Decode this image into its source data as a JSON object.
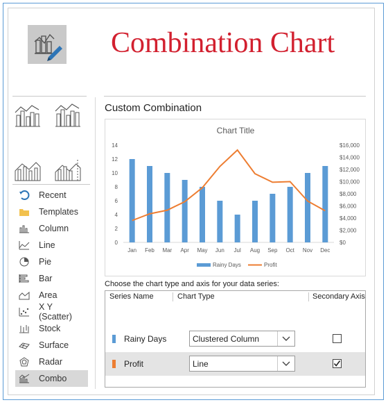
{
  "headline": "Combination Chart",
  "section_title": "Custom Combination",
  "chart_types": [
    {
      "label": "Recent",
      "icon": "recent-icon"
    },
    {
      "label": "Templates",
      "icon": "folder-icon"
    },
    {
      "label": "Column",
      "icon": "column-chart-icon"
    },
    {
      "label": "Line",
      "icon": "line-chart-icon"
    },
    {
      "label": "Pie",
      "icon": "pie-chart-icon"
    },
    {
      "label": "Bar",
      "icon": "bar-chart-icon"
    },
    {
      "label": "Area",
      "icon": "area-chart-icon"
    },
    {
      "label": "X Y (Scatter)",
      "icon": "scatter-chart-icon"
    },
    {
      "label": "Stock",
      "icon": "stock-chart-icon"
    },
    {
      "label": "Surface",
      "icon": "surface-chart-icon"
    },
    {
      "label": "Radar",
      "icon": "radar-chart-icon"
    },
    {
      "label": "Combo",
      "icon": "combo-chart-icon",
      "selected": true
    }
  ],
  "chart_data": {
    "type": "bar",
    "title": "Chart Title",
    "categories": [
      "Jan",
      "Feb",
      "Mar",
      "Apr",
      "May",
      "Jun",
      "Jul",
      "Aug",
      "Sep",
      "Oct",
      "Nov",
      "Dec"
    ],
    "series": [
      {
        "name": "Rainy Days",
        "type": "bar",
        "axis": "primary",
        "values": [
          12,
          11,
          10,
          9,
          8,
          6,
          4,
          6,
          7,
          8,
          10,
          11
        ]
      },
      {
        "name": "Profit",
        "type": "line",
        "axis": "secondary",
        "values": [
          3600,
          4700,
          5300,
          6700,
          9000,
          12500,
          15200,
          11300,
          9900,
          10000,
          6800,
          5200
        ]
      }
    ],
    "ylim": [
      0,
      14
    ],
    "y_ticks": [
      "0",
      "2",
      "4",
      "6",
      "8",
      "10",
      "12",
      "14"
    ],
    "y2lim": [
      0,
      16000
    ],
    "y2_ticks": [
      "$0",
      "$2,000",
      "$4,000",
      "$6,000",
      "$8,000",
      "$10,000",
      "$12,000",
      "$14,000",
      "$16,000"
    ],
    "legend": "bottom",
    "grid": false
  },
  "colors": {
    "bar": "#5b9bd5",
    "line": "#ed7d31",
    "headline": "#d2202f"
  },
  "instructions": "Choose the chart type and axis for your data series:",
  "series_table": {
    "headers": {
      "name": "Series Name",
      "type": "Chart Type",
      "axis": "Secondary Axis"
    },
    "rows": [
      {
        "name": "Rainy Days",
        "chart_type": "Clustered Column",
        "secondary": false
      },
      {
        "name": "Profit",
        "chart_type": "Line",
        "secondary": true
      }
    ]
  }
}
